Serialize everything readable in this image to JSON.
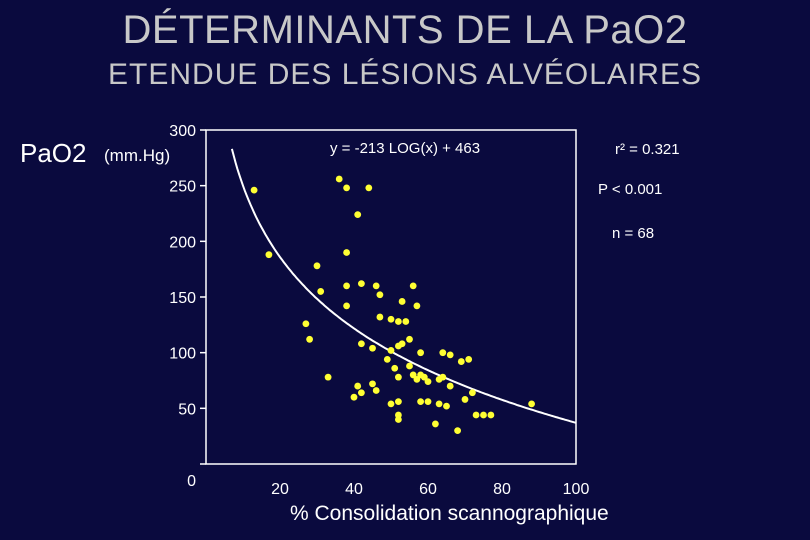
{
  "title": "DÉTERMINANTS DE LA PaO2",
  "subtitle": "ETENDUE DES LÉSIONS ALVÉOLAIRES",
  "chart_data": {
    "type": "scatter",
    "ylabel_main": "PaO2",
    "ylabel_unit": "(mm.Hg)",
    "xlabel": "% Consolidation scannographique",
    "xlim": [
      0,
      100
    ],
    "ylim": [
      0,
      300
    ],
    "x_ticks": [
      "20",
      "40",
      "60",
      "80",
      "100"
    ],
    "y_ticks": [
      "300",
      "250",
      "200",
      "150",
      "100",
      "50",
      "0"
    ],
    "equation": "y =  -213 LOG(x) + 463",
    "r2_label": "r²  = 0.321",
    "p_label": "P < 0.001",
    "n_label": "n =  68",
    "point_color": "#ffff33",
    "curve_color": "#ffffff",
    "points": [
      [
        13,
        246
      ],
      [
        17,
        188
      ],
      [
        36,
        256
      ],
      [
        38,
        248
      ],
      [
        44,
        248
      ],
      [
        41,
        224
      ],
      [
        38,
        190
      ],
      [
        30,
        178
      ],
      [
        31,
        155
      ],
      [
        27,
        126
      ],
      [
        28,
        112
      ],
      [
        38,
        160
      ],
      [
        38,
        142
      ],
      [
        42,
        162
      ],
      [
        46,
        160
      ],
      [
        47,
        152
      ],
      [
        47,
        132
      ],
      [
        50,
        130
      ],
      [
        53,
        146
      ],
      [
        56,
        160
      ],
      [
        57,
        142
      ],
      [
        52,
        128
      ],
      [
        54,
        128
      ],
      [
        42,
        108
      ],
      [
        45,
        104
      ],
      [
        50,
        102
      ],
      [
        52,
        106
      ],
      [
        53,
        108
      ],
      [
        55,
        112
      ],
      [
        58,
        100
      ],
      [
        64,
        100
      ],
      [
        66,
        98
      ],
      [
        69,
        92
      ],
      [
        71,
        94
      ],
      [
        49,
        94
      ],
      [
        51,
        86
      ],
      [
        55,
        88
      ],
      [
        52,
        78
      ],
      [
        56,
        80
      ],
      [
        58,
        80
      ],
      [
        59,
        78
      ],
      [
        57,
        76
      ],
      [
        60,
        74
      ],
      [
        63,
        76
      ],
      [
        64,
        78
      ],
      [
        66,
        70
      ],
      [
        45,
        72
      ],
      [
        42,
        64
      ],
      [
        41,
        70
      ],
      [
        46,
        66
      ],
      [
        40,
        60
      ],
      [
        50,
        54
      ],
      [
        52,
        56
      ],
      [
        58,
        56
      ],
      [
        60,
        56
      ],
      [
        63,
        54
      ],
      [
        65,
        52
      ],
      [
        70,
        58
      ],
      [
        72,
        64
      ],
      [
        75,
        44
      ],
      [
        77,
        44
      ],
      [
        73,
        44
      ],
      [
        52,
        44
      ],
      [
        52,
        40
      ],
      [
        62,
        36
      ],
      [
        68,
        30
      ],
      [
        88,
        54
      ],
      [
        33,
        78
      ]
    ]
  }
}
